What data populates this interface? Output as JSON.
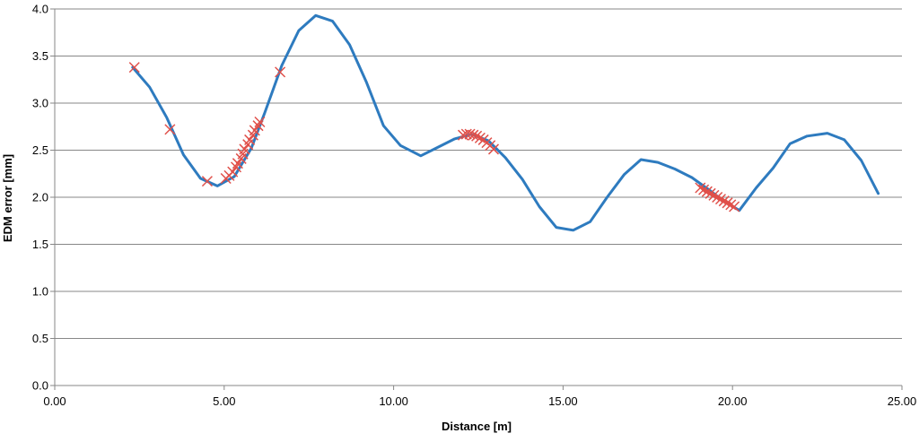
{
  "chart_data": {
    "type": "scatter",
    "title": "",
    "xlabel": "Distance [m]",
    "ylabel": "EDM error [mm]",
    "xlim": [
      0,
      25
    ],
    "ylim": [
      0,
      4
    ],
    "x_ticks": [
      "0.00",
      "5.00",
      "10.00",
      "15.00",
      "20.00",
      "25.00"
    ],
    "y_ticks": [
      "0.0",
      "0.5",
      "1.0",
      "1.5",
      "2.0",
      "2.5",
      "3.0",
      "3.5",
      "4.0"
    ],
    "grid": "horizontal",
    "legend": "none",
    "series": [
      {
        "kind": "line",
        "color": "#2E7BBF",
        "points": [
          [
            2.3,
            3.38
          ],
          [
            2.8,
            3.17
          ],
          [
            3.3,
            2.85
          ],
          [
            3.8,
            2.45
          ],
          [
            4.3,
            2.2
          ],
          [
            4.8,
            2.12
          ],
          [
            5.3,
            2.22
          ],
          [
            5.8,
            2.52
          ],
          [
            6.2,
            2.9
          ],
          [
            6.7,
            3.4
          ],
          [
            7.2,
            3.77
          ],
          [
            7.7,
            3.93
          ],
          [
            8.2,
            3.87
          ],
          [
            8.7,
            3.62
          ],
          [
            9.2,
            3.22
          ],
          [
            9.7,
            2.76
          ],
          [
            10.2,
            2.55
          ],
          [
            10.8,
            2.44
          ],
          [
            11.3,
            2.53
          ],
          [
            11.8,
            2.62
          ],
          [
            12.3,
            2.67
          ],
          [
            12.8,
            2.6
          ],
          [
            13.3,
            2.42
          ],
          [
            13.8,
            2.19
          ],
          [
            14.3,
            1.9
          ],
          [
            14.8,
            1.68
          ],
          [
            15.3,
            1.65
          ],
          [
            15.8,
            1.74
          ],
          [
            16.3,
            2.0
          ],
          [
            16.8,
            2.24
          ],
          [
            17.3,
            2.4
          ],
          [
            17.8,
            2.37
          ],
          [
            18.3,
            2.3
          ],
          [
            18.8,
            2.21
          ],
          [
            19.3,
            2.08
          ],
          [
            19.7,
            1.97
          ],
          [
            20.2,
            1.86
          ],
          [
            20.7,
            2.1
          ],
          [
            21.2,
            2.31
          ],
          [
            21.7,
            2.57
          ],
          [
            22.2,
            2.65
          ],
          [
            22.8,
            2.68
          ],
          [
            23.3,
            2.61
          ],
          [
            23.8,
            2.39
          ],
          [
            24.3,
            2.04
          ]
        ]
      },
      {
        "kind": "markers",
        "marker": "x",
        "color": "#E0504A",
        "points": [
          [
            2.35,
            3.38
          ],
          [
            3.4,
            2.72
          ],
          [
            4.5,
            2.17
          ],
          [
            5.05,
            2.2
          ],
          [
            5.15,
            2.23
          ],
          [
            5.25,
            2.27
          ],
          [
            5.35,
            2.32
          ],
          [
            5.4,
            2.36
          ],
          [
            5.5,
            2.41
          ],
          [
            5.55,
            2.46
          ],
          [
            5.6,
            2.51
          ],
          [
            5.7,
            2.56
          ],
          [
            5.75,
            2.61
          ],
          [
            5.85,
            2.66
          ],
          [
            5.9,
            2.71
          ],
          [
            6.0,
            2.76
          ],
          [
            6.05,
            2.8
          ],
          [
            6.65,
            3.33
          ],
          [
            12.05,
            2.66
          ],
          [
            12.15,
            2.67
          ],
          [
            12.25,
            2.67
          ],
          [
            12.35,
            2.66
          ],
          [
            12.45,
            2.65
          ],
          [
            12.55,
            2.63
          ],
          [
            12.65,
            2.61
          ],
          [
            12.75,
            2.58
          ],
          [
            12.85,
            2.55
          ],
          [
            12.95,
            2.51
          ],
          [
            19.05,
            2.1
          ],
          [
            19.15,
            2.08
          ],
          [
            19.25,
            2.06
          ],
          [
            19.35,
            2.04
          ],
          [
            19.45,
            2.02
          ],
          [
            19.55,
            2.0
          ],
          [
            19.65,
            1.98
          ],
          [
            19.75,
            1.96
          ],
          [
            19.85,
            1.94
          ],
          [
            19.95,
            1.92
          ],
          [
            20.05,
            1.9
          ]
        ]
      }
    ]
  }
}
